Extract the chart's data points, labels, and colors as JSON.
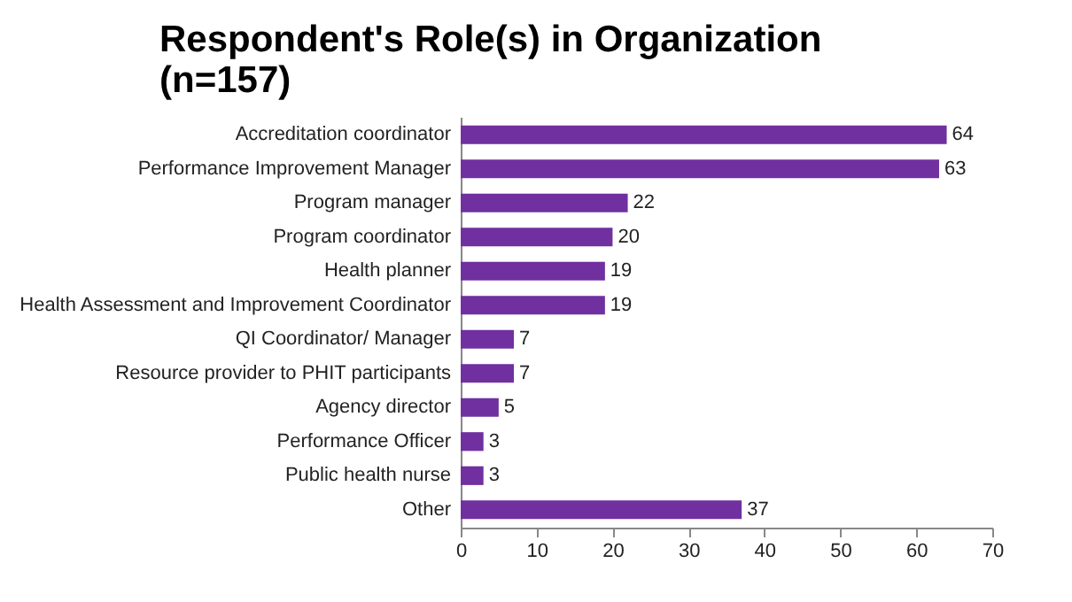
{
  "chart_data": {
    "type": "bar",
    "orientation": "horizontal",
    "title": "Respondent's Role(s) in Organization\n(n=157)",
    "categories": [
      "Accreditation coordinator",
      "Performance Improvement Manager",
      "Program manager",
      "Program coordinator",
      "Health planner",
      "Health Assessment and Improvement Coordinator",
      "QI Coordinator/ Manager",
      "Resource provider to PHIT participants",
      "Agency director",
      "Performance Officer",
      "Public health nurse",
      "Other"
    ],
    "values": [
      64,
      63,
      22,
      20,
      19,
      19,
      7,
      7,
      5,
      3,
      3,
      37
    ],
    "color": "#7030a0",
    "xlim": [
      0,
      70
    ],
    "xticks": [
      0,
      10,
      20,
      30,
      40,
      50,
      60,
      70
    ],
    "data_labels": true,
    "grid": false
  }
}
